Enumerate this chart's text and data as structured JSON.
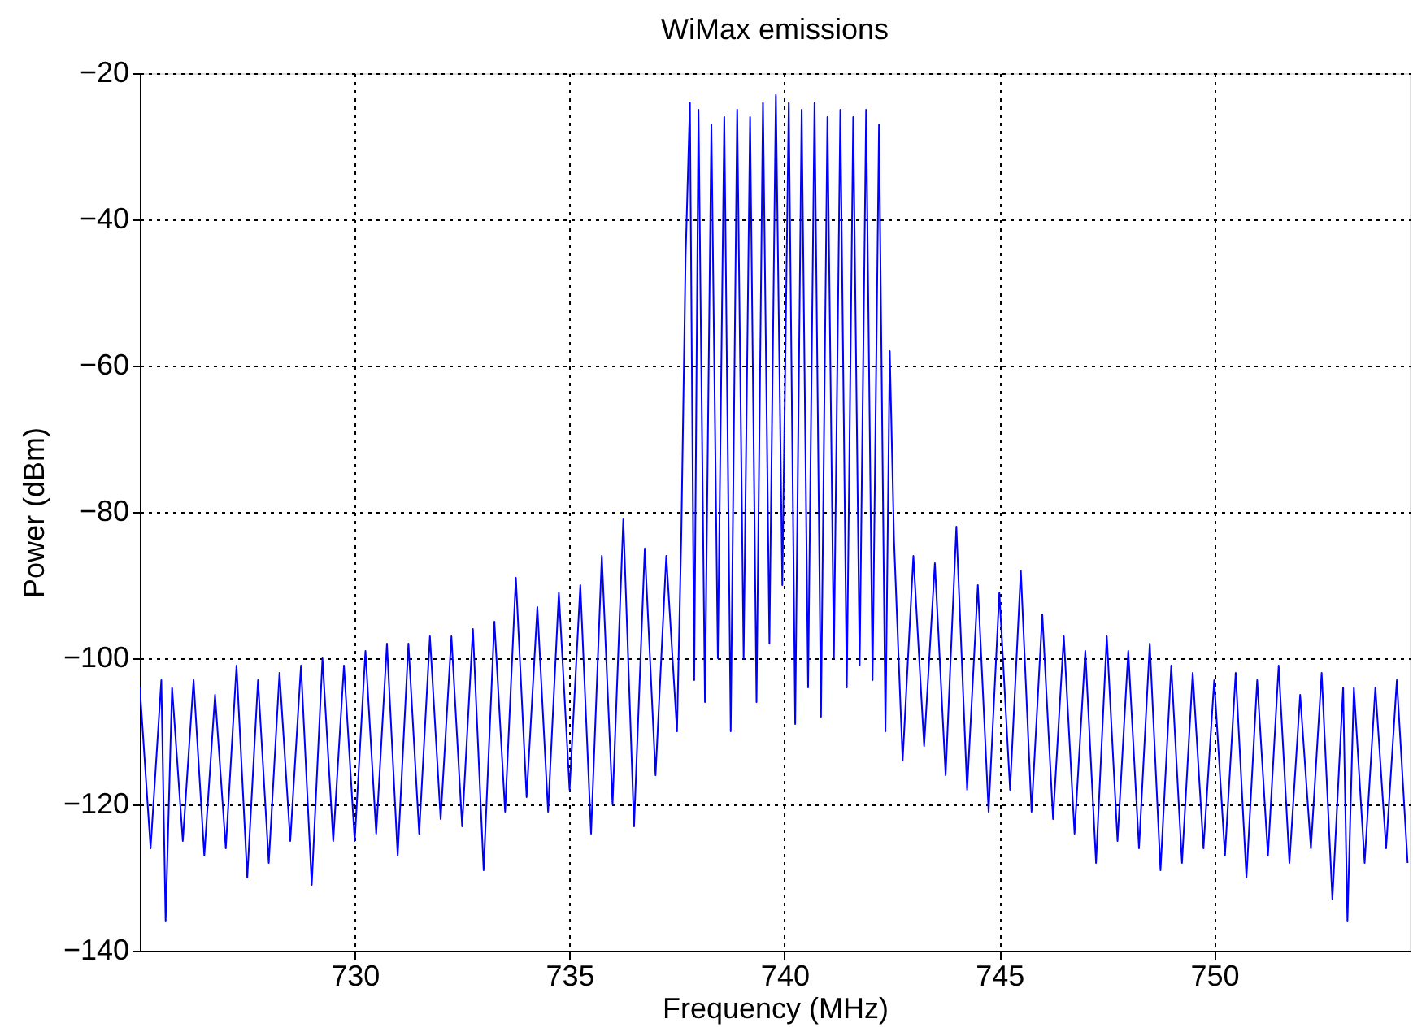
{
  "chart_data": {
    "type": "line",
    "title": "WiMax emissions",
    "xlabel": "Frequency (MHz)",
    "ylabel": "Power (dBm)",
    "xlim": [
      725,
      754.55
    ],
    "ylim": [
      -140,
      -20
    ],
    "xticks": [
      730,
      735,
      740,
      745,
      750
    ],
    "yticks": [
      -140,
      -120,
      -100,
      -80,
      -60,
      -40,
      -20
    ],
    "grid": true,
    "series": [
      {
        "color": "#0000ff",
        "x": [
          725.0,
          725.25,
          725.5,
          725.6,
          725.75,
          726.0,
          726.25,
          726.5,
          726.75,
          727.0,
          727.25,
          727.5,
          727.75,
          728.0,
          728.25,
          728.5,
          728.75,
          729.0,
          729.25,
          729.5,
          729.75,
          730.0,
          730.25,
          730.5,
          730.75,
          731.0,
          731.25,
          731.5,
          731.75,
          732.0,
          732.25,
          732.5,
          732.75,
          733.0,
          733.25,
          733.5,
          733.75,
          734.0,
          734.25,
          734.5,
          734.75,
          735.0,
          735.25,
          735.5,
          735.75,
          736.0,
          736.25,
          736.5,
          736.75,
          737.0,
          737.25,
          737.5,
          737.6,
          737.7,
          737.8,
          737.9,
          738.0,
          738.15,
          738.3,
          738.45,
          738.6,
          738.75,
          738.9,
          739.05,
          739.2,
          739.35,
          739.5,
          739.65,
          739.8,
          739.95,
          740.1,
          740.25,
          740.4,
          740.55,
          740.7,
          740.85,
          741.0,
          741.15,
          741.3,
          741.45,
          741.6,
          741.75,
          741.9,
          742.05,
          742.2,
          742.35,
          742.45,
          742.55,
          742.75,
          743.0,
          743.25,
          743.5,
          743.75,
          744.0,
          744.25,
          744.5,
          744.75,
          745.0,
          745.25,
          745.5,
          745.75,
          746.0,
          746.25,
          746.5,
          746.75,
          747.0,
          747.25,
          747.5,
          747.75,
          748.0,
          748.25,
          748.5,
          748.75,
          749.0,
          749.25,
          749.5,
          749.75,
          750.0,
          750.25,
          750.5,
          750.75,
          751.0,
          751.25,
          751.5,
          751.75,
          752.0,
          752.25,
          752.5,
          752.75,
          753.0,
          753.1,
          753.25,
          753.5,
          753.75,
          754.0,
          754.25,
          754.5
        ],
        "values": [
          -104,
          -126,
          -103,
          -136,
          -104,
          -125,
          -103,
          -127,
          -105,
          -126,
          -101,
          -130,
          -103,
          -128,
          -102,
          -125,
          -101,
          -131,
          -100,
          -125,
          -101,
          -125,
          -99,
          -124,
          -98,
          -127,
          -98,
          -124,
          -97,
          -122,
          -97,
          -123,
          -96,
          -129,
          -95,
          -121,
          -89,
          -119,
          -93,
          -121,
          -91,
          -118,
          -90,
          -124,
          -86,
          -120,
          -81,
          -123,
          -85,
          -116,
          -86,
          -110,
          -83,
          -45,
          -24,
          -103,
          -25,
          -106,
          -27,
          -100,
          -26,
          -110,
          -25,
          -100,
          -26,
          -106,
          -24,
          -98,
          -23,
          -90,
          -24,
          -109,
          -25,
          -104,
          -24,
          -108,
          -26,
          -100,
          -25,
          -104,
          -26,
          -101,
          -25,
          -103,
          -27,
          -110,
          -58,
          -84,
          -114,
          -86,
          -112,
          -87,
          -116,
          -82,
          -118,
          -90,
          -121,
          -91,
          -118,
          -88,
          -121,
          -94,
          -122,
          -97,
          -124,
          -99,
          -128,
          -97,
          -125,
          -99,
          -126,
          -98,
          -129,
          -101,
          -128,
          -102,
          -126,
          -103,
          -127,
          -102,
          -130,
          -103,
          -127,
          -101,
          -128,
          -105,
          -126,
          -102,
          -133,
          -104,
          -136,
          -104,
          -128,
          -104,
          -126,
          -103,
          -128
        ]
      }
    ]
  }
}
